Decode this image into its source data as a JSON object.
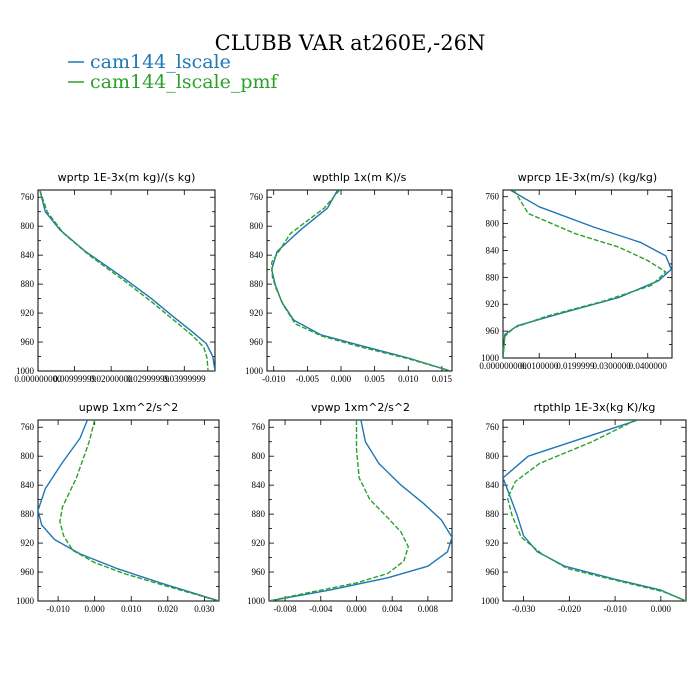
{
  "figure": {
    "title": "CLUBB VAR at260E,-26N",
    "legend": [
      {
        "label": "cam144_lscale",
        "color": "#1f77b4"
      },
      {
        "label": "cam144_lscale_pmf",
        "color": "#2ca02c"
      }
    ]
  },
  "chart_data": [
    {
      "type": "line",
      "title": "wprtp  1E-3x(m kg)/(s kg)",
      "ylim": [
        760,
        1000
      ],
      "ylim_extra": [
        750,
        1000
      ],
      "xlim": [
        0.0,
        0.0484
      ],
      "yticks": [
        "760",
        "800",
        "840",
        "880",
        "920",
        "960",
        "1000"
      ],
      "xticks": [
        {
          "value": 0.0,
          "label": "0.000000000"
        },
        {
          "value": 0.01,
          "label": "0.00999999"
        },
        {
          "value": 0.02,
          "label": "0.02000000"
        },
        {
          "value": 0.03,
          "label": "0.02999999"
        },
        {
          "value": 0.04,
          "label": "0.03999999"
        }
      ],
      "series": [
        {
          "name": "cam144_lscale",
          "color": "#1f77b4",
          "dash": "",
          "x": [
            0.0005,
            0.002,
            0.006,
            0.013,
            0.023,
            0.031,
            0.037,
            0.042,
            0.046,
            0.0478,
            0.0484
          ],
          "y": [
            750,
            780,
            805,
            835,
            870,
            900,
            925,
            945,
            962,
            980,
            1000
          ]
        },
        {
          "name": "cam144_lscale_pmf",
          "color": "#2ca02c",
          "dash": "5,2",
          "x": [
            0.0005,
            0.0025,
            0.007,
            0.014,
            0.0235,
            0.0312,
            0.0372,
            0.042,
            0.0453,
            0.0462,
            0.0465
          ],
          "y": [
            750,
            780,
            810,
            840,
            875,
            905,
            930,
            950,
            967,
            982,
            1000
          ]
        }
      ]
    },
    {
      "type": "line",
      "title": "wpthlp  1x(m K)/s",
      "ylim": [
        750,
        1000
      ],
      "xlim": [
        -0.011,
        0.0165
      ],
      "yticks": [
        "760",
        "800",
        "840",
        "880",
        "920",
        "960",
        "1000"
      ],
      "xticks": [
        {
          "value": -0.01,
          "label": "-0.010"
        },
        {
          "value": -0.005,
          "label": "-0.005"
        },
        {
          "value": 0.0,
          "label": "0.000"
        },
        {
          "value": 0.005,
          "label": "0.005"
        },
        {
          "value": 0.01,
          "label": "0.010"
        },
        {
          "value": 0.015,
          "label": "0.015"
        }
      ],
      "series": [
        {
          "name": "cam144_lscale",
          "color": "#1f77b4",
          "dash": "",
          "x": [
            -0.0005,
            -0.002,
            -0.006,
            -0.0095,
            -0.0103,
            -0.0098,
            -0.0088,
            -0.007,
            -0.003,
            0.003,
            0.01,
            0.0163
          ],
          "y": [
            750,
            775,
            805,
            835,
            860,
            880,
            905,
            930,
            950,
            965,
            982,
            1000
          ]
        },
        {
          "name": "cam144_lscale_pmf",
          "color": "#2ca02c",
          "dash": "5,2",
          "x": [
            -0.0002,
            -0.0025,
            -0.0075,
            -0.0103,
            -0.0102,
            -0.0097,
            -0.0085,
            -0.0068,
            -0.0028,
            0.003,
            0.01,
            0.0163
          ],
          "y": [
            750,
            775,
            810,
            850,
            870,
            885,
            910,
            935,
            952,
            967,
            983,
            1000
          ]
        }
      ]
    },
    {
      "type": "line",
      "title": "wprcp  1E-3x(m/s) (kg/kg)",
      "ylim": [
        750,
        1000
      ],
      "xlim": [
        0.0,
        0.0467
      ],
      "yticks": [
        "760",
        "800",
        "840",
        "880",
        "920",
        "960",
        "1000"
      ],
      "xticks": [
        {
          "value": 0.0,
          "label": "0.000000000"
        },
        {
          "value": 0.01,
          "label": "0.0100000"
        },
        {
          "value": 0.02,
          "label": "0.0199999"
        },
        {
          "value": 0.03,
          "label": "0.0300000"
        },
        {
          "value": 0.04,
          "label": "0.0400000"
        }
      ],
      "series": [
        {
          "name": "cam144_lscale",
          "color": "#1f77b4",
          "dash": "",
          "x": [
            0.002,
            0.01,
            0.025,
            0.038,
            0.045,
            0.0465,
            0.043,
            0.032,
            0.015,
            0.004,
            0.0005,
            0.0
          ],
          "y": [
            750,
            775,
            805,
            828,
            848,
            868,
            885,
            910,
            935,
            952,
            965,
            1000
          ]
        },
        {
          "name": "cam144_lscale_pmf",
          "color": "#2ca02c",
          "dash": "5,2",
          "x": [
            0.003,
            0.007,
            0.02,
            0.032,
            0.04,
            0.045,
            0.041,
            0.028,
            0.012,
            0.003,
            0.0005,
            0.0
          ],
          "y": [
            750,
            785,
            815,
            835,
            855,
            872,
            892,
            915,
            938,
            955,
            968,
            1000
          ]
        }
      ]
    },
    {
      "type": "line",
      "title": "upwp  1xm^2/s^2",
      "ylim": [
        750,
        1000
      ],
      "xlim": [
        -0.0155,
        0.034
      ],
      "yticks": [
        "760",
        "800",
        "840",
        "880",
        "920",
        "960",
        "1000"
      ],
      "xticks": [
        {
          "value": -0.01,
          "label": "-0.010"
        },
        {
          "value": 0.0,
          "label": "0.000"
        },
        {
          "value": 0.01,
          "label": "0.010"
        },
        {
          "value": 0.02,
          "label": "0.020"
        },
        {
          "value": 0.03,
          "label": "0.030"
        }
      ],
      "series": [
        {
          "name": "cam144_lscale",
          "color": "#1f77b4",
          "dash": "",
          "x": [
            -0.002,
            -0.004,
            -0.009,
            -0.0135,
            -0.0155,
            -0.0145,
            -0.011,
            -0.004,
            0.006,
            0.018,
            0.034
          ],
          "y": [
            750,
            775,
            810,
            845,
            875,
            895,
            915,
            935,
            955,
            975,
            1000
          ]
        },
        {
          "name": "cam144_lscale_pmf",
          "color": "#2ca02c",
          "dash": "5,2",
          "x": [
            0.0,
            -0.0015,
            -0.005,
            -0.0088,
            -0.0095,
            -0.0085,
            -0.006,
            0.0,
            0.008,
            0.02,
            0.034
          ],
          "y": [
            750,
            780,
            830,
            870,
            890,
            910,
            930,
            947,
            962,
            980,
            1000
          ]
        }
      ]
    },
    {
      "type": "line",
      "title": "vpwp  1xm^2/s^2",
      "ylim": [
        750,
        1000
      ],
      "xlim": [
        -0.0098,
        0.0107
      ],
      "yticks": [
        "760",
        "800",
        "840",
        "880",
        "920",
        "960",
        "1000"
      ],
      "xticks": [
        {
          "value": -0.008,
          "label": "-0.008"
        },
        {
          "value": -0.004,
          "label": "-0.004"
        },
        {
          "value": 0.0,
          "label": "0.000"
        },
        {
          "value": 0.004,
          "label": "0.004"
        },
        {
          "value": 0.008,
          "label": "0.008"
        }
      ],
      "series": [
        {
          "name": "cam144_lscale",
          "color": "#1f77b4",
          "dash": "",
          "x": [
            0.0005,
            0.001,
            0.0025,
            0.005,
            0.0075,
            0.0095,
            0.0107,
            0.0102,
            0.008,
            0.0035,
            -0.003,
            -0.0098
          ],
          "y": [
            750,
            780,
            810,
            840,
            865,
            888,
            912,
            932,
            952,
            968,
            985,
            1000
          ]
        },
        {
          "name": "cam144_lscale_pmf",
          "color": "#2ca02c",
          "dash": "5,2",
          "x": [
            0.0,
            0.0,
            0.0003,
            0.0015,
            0.0035,
            0.005,
            0.0058,
            0.0053,
            0.0035,
            0.0,
            -0.006,
            -0.0098
          ],
          "y": [
            750,
            790,
            830,
            860,
            885,
            905,
            925,
            945,
            962,
            975,
            990,
            1000
          ]
        }
      ]
    },
    {
      "type": "line",
      "title": "rtpthlp  1E-3x(kg K)/kg",
      "ylim": [
        750,
        1000
      ],
      "xlim": [
        -0.0345,
        0.0055
      ],
      "yticks": [
        "760",
        "800",
        "840",
        "880",
        "920",
        "960",
        "1000"
      ],
      "xticks": [
        {
          "value": -0.03,
          "label": "-0.030"
        },
        {
          "value": -0.02,
          "label": "-0.020"
        },
        {
          "value": -0.01,
          "label": "-0.010"
        },
        {
          "value": 0.0,
          "label": "0.000"
        }
      ],
      "series": [
        {
          "name": "cam144_lscale",
          "color": "#1f77b4",
          "dash": "",
          "x": [
            -0.005,
            -0.017,
            -0.029,
            -0.0345,
            -0.033,
            -0.0315,
            -0.03,
            -0.027,
            -0.021,
            -0.01,
            0.0,
            0.0055
          ],
          "y": [
            750,
            775,
            800,
            830,
            855,
            880,
            910,
            932,
            952,
            970,
            985,
            1000
          ]
        },
        {
          "name": "cam144_lscale_pmf",
          "color": "#2ca02c",
          "dash": "5,2",
          "x": [
            -0.0055,
            -0.015,
            -0.0265,
            -0.0318,
            -0.0335,
            -0.0325,
            -0.0305,
            -0.026,
            -0.0205,
            -0.0095,
            0.0005,
            0.0055
          ],
          "y": [
            750,
            780,
            810,
            835,
            858,
            882,
            912,
            935,
            955,
            972,
            987,
            1000
          ]
        }
      ]
    }
  ]
}
